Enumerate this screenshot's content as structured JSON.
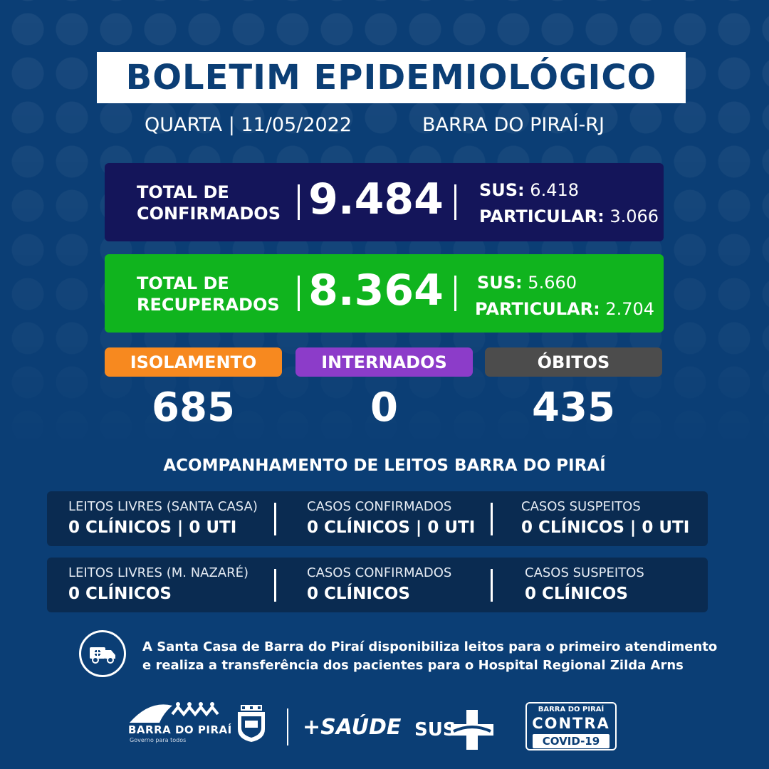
{
  "header": {
    "title": "BOLETIM EPIDEMIOLÓGICO",
    "date": "QUARTA | 11/05/2022",
    "city": "BARRA DO PIRAÍ-RJ"
  },
  "confirmed": {
    "label_line1": "TOTAL DE",
    "label_line2": "CONFIRMADOS",
    "total": "9.484",
    "sus_label": "SUS:",
    "sus_value": "6.418",
    "private_label": "PARTICULAR:",
    "private_value": "3.066",
    "color": "#14155a"
  },
  "recovered": {
    "label_line1": "TOTAL DE",
    "label_line2": "RECUPERADOS",
    "total": "8.364",
    "sus_label": "SUS:",
    "sus_value": "5.660",
    "private_label": "PARTICULAR:",
    "private_value": "2.704",
    "color": "#10b41e"
  },
  "status": {
    "isolation": {
      "label": "ISOLAMENTO",
      "value": "685",
      "color": "#f7891f"
    },
    "hospitalized": {
      "label": "INTERNADOS",
      "value": "0",
      "color": "#8c3cc9"
    },
    "deaths": {
      "label": "ÓBITOS",
      "value": "435",
      "color": "#4c4c4c"
    }
  },
  "beds": {
    "title": "ACOMPANHAMENTO DE LEITOS BARRA DO PIRAÍ",
    "rows": [
      {
        "col1_header": "LEITOS LIVRES (SANTA CASA)",
        "col1_value": "0 CLÍNICOS | 0 UTI",
        "col2_header": "CASOS CONFIRMADOS",
        "col2_value": "0 CLÍNICOS | 0 UTI",
        "col3_header": "CASOS SUSPEITOS",
        "col3_value": "0 CLÍNICOS | 0 UTI"
      },
      {
        "col1_header": "LEITOS LIVRES (M. NAZARÉ)",
        "col1_value": "0 CLÍNICOS",
        "col2_header": "CASOS CONFIRMADOS",
        "col2_value": "0 CLÍNICOS",
        "col3_header": "CASOS SUSPEITOS",
        "col3_value": "0 CLÍNICOS"
      }
    ]
  },
  "info": {
    "icon": "ambulance-icon",
    "line1": "A Santa Casa de Barra do Piraí disponibiliza leitos para o primeiro atendimento",
    "line2": "e realiza a transferência dos pacientes para o Hospital Regional Zilda Arns"
  },
  "footer": {
    "city_logo_name": "BARRA DO PIRAÍ",
    "city_logo_sub": "Governo para todos",
    "saude_logo": "+SAÚDE",
    "sus_logo": "SUS",
    "covid_line1": "BARRA DO PIRAÍ",
    "covid_line2": "CONTRA",
    "covid_line3": "COVID-19"
  }
}
